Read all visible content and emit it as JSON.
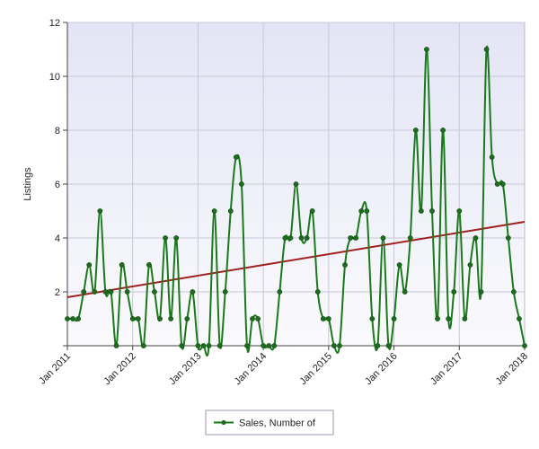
{
  "chart_data": {
    "type": "line",
    "xlabel": "",
    "ylabel": "Listings",
    "ylim": [
      0,
      12
    ],
    "y_ticks": [
      0,
      2,
      4,
      6,
      8,
      10,
      12
    ],
    "y_tick_labels": [
      "",
      "2",
      "4",
      "6",
      "8",
      "10",
      "12"
    ],
    "x_range": [
      "2011-01",
      "2018-01"
    ],
    "x_tick_labels": [
      "Jan 2011",
      "Jan 2012",
      "Jan 2013",
      "Jan 2014",
      "Jan 2015",
      "Jan 2016",
      "Jan 2017",
      "Jan 2018"
    ],
    "grid": true,
    "legend_position": "bottom-center",
    "colors": {
      "plot_background": "#e6e6f7",
      "series": "#1a7a1a",
      "trend": "#a02020",
      "grid": "#c8c8d8"
    },
    "series": [
      {
        "name": "Sales, Number of",
        "x": [
          "2011-01",
          "2011-02",
          "2011-03",
          "2011-04",
          "2011-05",
          "2011-06",
          "2011-07",
          "2011-08",
          "2011-09",
          "2011-10",
          "2011-11",
          "2011-12",
          "2012-01",
          "2012-02",
          "2012-03",
          "2012-04",
          "2012-05",
          "2012-06",
          "2012-07",
          "2012-08",
          "2012-09",
          "2012-10",
          "2012-11",
          "2012-12",
          "2013-01",
          "2013-02",
          "2013-03",
          "2013-04",
          "2013-05",
          "2013-06",
          "2013-07",
          "2013-08",
          "2013-09",
          "2013-10",
          "2013-11",
          "2013-12",
          "2014-01",
          "2014-02",
          "2014-03",
          "2014-04",
          "2014-05",
          "2014-06",
          "2014-07",
          "2014-08",
          "2014-09",
          "2014-10",
          "2014-11",
          "2014-12",
          "2015-01",
          "2015-02",
          "2015-03",
          "2015-04",
          "2015-05",
          "2015-06",
          "2015-07",
          "2015-08",
          "2015-09",
          "2015-10",
          "2015-11",
          "2015-12",
          "2016-01",
          "2016-02",
          "2016-03",
          "2016-04",
          "2016-05",
          "2016-06",
          "2016-07",
          "2016-08",
          "2016-09",
          "2016-10",
          "2016-11",
          "2016-12",
          "2017-01",
          "2017-02",
          "2017-03",
          "2017-04",
          "2017-05",
          "2017-06",
          "2017-07",
          "2017-08",
          "2017-09",
          "2017-10",
          "2017-11",
          "2017-12",
          "2018-01"
        ],
        "values": [
          1,
          1,
          1,
          2,
          3,
          2,
          5,
          2,
          2,
          0,
          3,
          2,
          1,
          1,
          0,
          3,
          2,
          1,
          4,
          1,
          4,
          0,
          1,
          2,
          0,
          0,
          0,
          5,
          0,
          2,
          5,
          7,
          6,
          0,
          1,
          1,
          0,
          0,
          0,
          2,
          4,
          4,
          6,
          4,
          4,
          5,
          2,
          1,
          1,
          0,
          0,
          3,
          4,
          4,
          5,
          5,
          1,
          0,
          4,
          0,
          1,
          3,
          2,
          4,
          8,
          5,
          11,
          5,
          1,
          8,
          1,
          2,
          5,
          1,
          3,
          4,
          2,
          11,
          7,
          6,
          6,
          4,
          2,
          1,
          0
        ]
      }
    ],
    "trend_line": {
      "start": [
        "2011-01",
        1.8
      ],
      "end": [
        "2018-01",
        4.6
      ]
    }
  }
}
